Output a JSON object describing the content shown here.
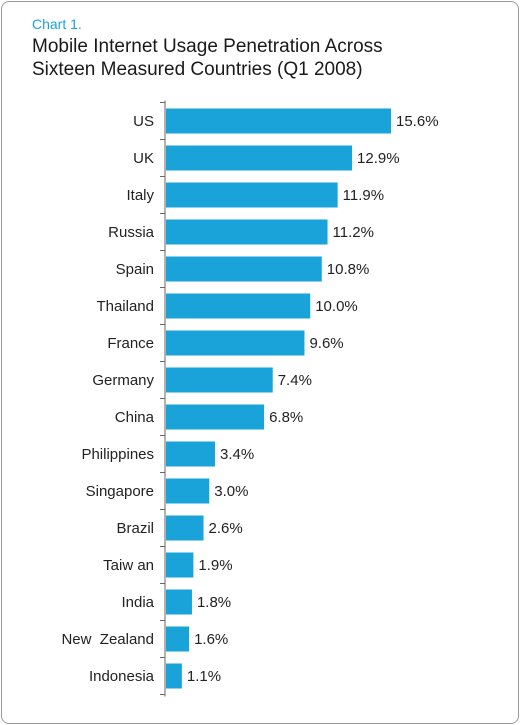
{
  "chart_label": "Chart 1.",
  "title_lines": [
    "Mobile Internet Usage Penetration Across",
    "Sixteen Measured Countries (Q1 2008)"
  ],
  "colors": {
    "bar": "#1aa3d8",
    "axis": "#666666",
    "label_accent": "#1aa3d8"
  },
  "chart_data": {
    "type": "bar",
    "orientation": "horizontal",
    "title": "Mobile Internet Usage Penetration Across Sixteen Measured Countries (Q1 2008)",
    "categories": [
      "US",
      "UK",
      "Italy",
      "Russia",
      "Spain",
      "Thailand",
      "France",
      "Germany",
      "China",
      "Philippines",
      "Singapore",
      "Brazil",
      "Taiw an",
      "India",
      "New  Zealand",
      "Indonesia"
    ],
    "values": [
      15.6,
      12.9,
      11.9,
      11.2,
      10.8,
      10.0,
      9.6,
      7.4,
      6.8,
      3.4,
      3.0,
      2.6,
      1.9,
      1.8,
      1.6,
      1.1
    ],
    "value_labels": [
      "15.6%",
      "12.9%",
      "11.9%",
      "11.2%",
      "10.8%",
      "10.0%",
      "9.6%",
      "7.4%",
      "6.8%",
      "3.4%",
      "3.0%",
      "2.6%",
      "1.9%",
      "1.8%",
      "1.6%",
      "1.1%"
    ],
    "unit": "%",
    "xlabel": "",
    "ylabel": "",
    "xlim": [
      0,
      15.6
    ],
    "grid": false,
    "legend": "none"
  }
}
